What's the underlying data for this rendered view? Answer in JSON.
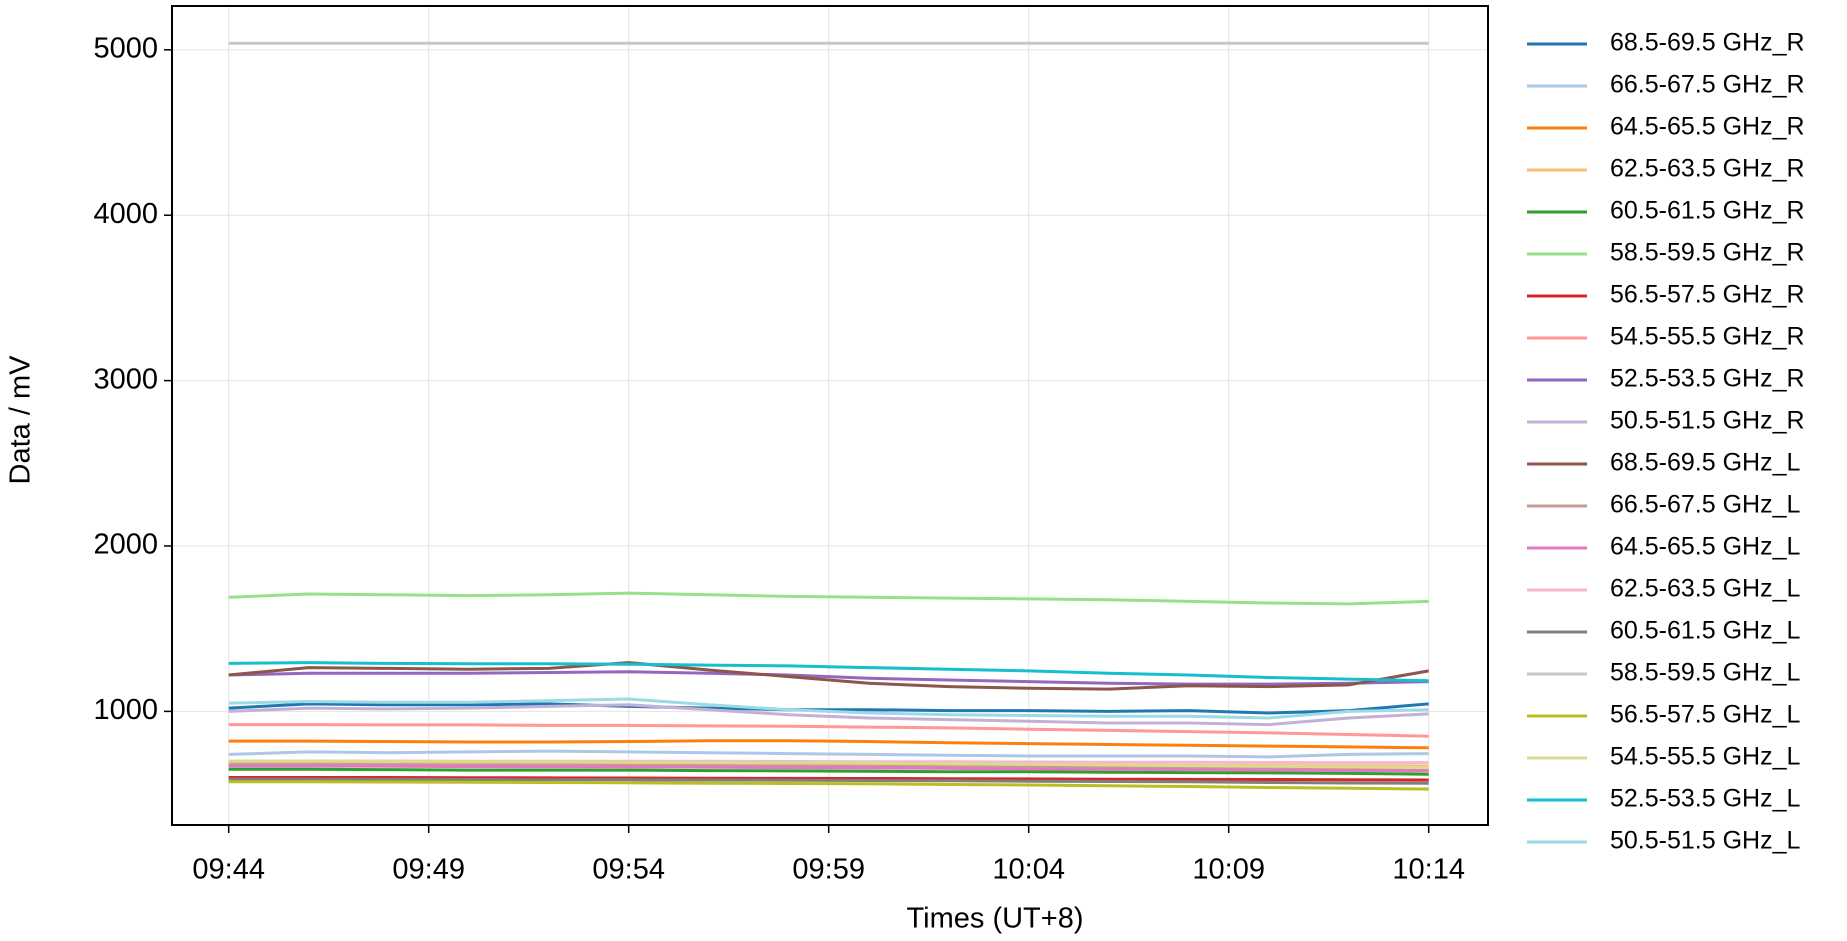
{
  "chart_data": {
    "type": "line",
    "xlabel": "Times (UT+8)",
    "ylabel": "Data / mV",
    "x": [
      "09:44",
      "09:46",
      "09:48",
      "09:50",
      "09:52",
      "09:54",
      "09:56",
      "09:58",
      "10:00",
      "10:02",
      "10:04",
      "10:06",
      "10:08",
      "10:10",
      "10:12",
      "10:14"
    ],
    "xlim": [
      "09:42:35",
      "10:15:29"
    ],
    "xticks": [
      "09:44",
      "09:49",
      "09:54",
      "09:59",
      "10:04",
      "10:09",
      "10:14"
    ],
    "ylim": [
      313,
      5265
    ],
    "yticks": [
      1000,
      2000,
      3000,
      4000,
      5000
    ],
    "grid": true,
    "legend": "outside-right",
    "series": [
      {
        "name": "68.5-69.5 GHz_R",
        "color": "#1f77b4",
        "values": [
          1020,
          1045,
          1040,
          1040,
          1045,
          1030,
          1020,
          1010,
          1010,
          1005,
          1005,
          1000,
          1005,
          990,
          1005,
          1045
        ]
      },
      {
        "name": "66.5-67.5 GHz_R",
        "color": "#aec7e8",
        "values": [
          740,
          755,
          750,
          755,
          760,
          755,
          750,
          745,
          740,
          735,
          730,
          730,
          730,
          725,
          740,
          745
        ]
      },
      {
        "name": "64.5-65.5 GHz_R",
        "color": "#ff7f0e",
        "values": [
          820,
          820,
          818,
          815,
          815,
          818,
          822,
          822,
          818,
          810,
          805,
          800,
          795,
          790,
          785,
          780
        ]
      },
      {
        "name": "62.5-63.5 GHz_R",
        "color": "#ffbb78",
        "values": [
          690,
          690,
          688,
          688,
          686,
          686,
          684,
          682,
          680,
          678,
          676,
          675,
          674,
          672,
          671,
          670
        ]
      },
      {
        "name": "60.5-61.5 GHz_R",
        "color": "#2ca02c",
        "values": [
          650,
          650,
          648,
          645,
          645,
          645,
          642,
          640,
          638,
          635,
          635,
          632,
          630,
          628,
          625,
          620
        ]
      },
      {
        "name": "58.5-59.5 GHz_R",
        "color": "#98df8a",
        "values": [
          1690,
          1710,
          1705,
          1700,
          1705,
          1715,
          1705,
          1695,
          1690,
          1685,
          1680,
          1675,
          1665,
          1655,
          1650,
          1665
        ]
      },
      {
        "name": "56.5-57.5 GHz_R",
        "color": "#d62728",
        "values": [
          600,
          600,
          600,
          599,
          598,
          597,
          596,
          595,
          594,
          593,
          592,
          590,
          589,
          588,
          586,
          585
        ]
      },
      {
        "name": "54.5-55.5 GHz_R",
        "color": "#ff9896",
        "values": [
          920,
          920,
          918,
          918,
          915,
          915,
          912,
          910,
          905,
          900,
          892,
          885,
          878,
          870,
          860,
          850
        ]
      },
      {
        "name": "52.5-53.5 GHz_R",
        "color": "#9467bd",
        "values": [
          1220,
          1230,
          1230,
          1230,
          1235,
          1240,
          1230,
          1220,
          1200,
          1190,
          1180,
          1170,
          1165,
          1165,
          1170,
          1180
        ]
      },
      {
        "name": "50.5-51.5 GHz_R",
        "color": "#c5b0d5",
        "values": [
          1000,
          1020,
          1015,
          1020,
          1030,
          1040,
          1010,
          980,
          960,
          950,
          940,
          930,
          930,
          920,
          960,
          985
        ]
      },
      {
        "name": "68.5-69.5 GHz_L",
        "color": "#8c564b",
        "values": [
          1220,
          1265,
          1260,
          1255,
          1260,
          1295,
          1250,
          1210,
          1170,
          1150,
          1140,
          1135,
          1155,
          1150,
          1160,
          1245
        ]
      },
      {
        "name": "66.5-67.5 GHz_L",
        "color": "#c49c94",
        "values": [
          680,
          680,
          678,
          676,
          675,
          674,
          672,
          670,
          668,
          665,
          662,
          660,
          658,
          655,
          652,
          650
        ]
      },
      {
        "name": "64.5-65.5 GHz_L",
        "color": "#e377c2",
        "values": [
          670,
          670,
          668,
          666,
          665,
          664,
          662,
          660,
          658,
          655,
          652,
          650,
          648,
          645,
          642,
          640
        ]
      },
      {
        "name": "62.5-63.5 GHz_L",
        "color": "#f7b6d2",
        "values": [
          700,
          700,
          700,
          699,
          699,
          698,
          698,
          697,
          696,
          695,
          694,
          693,
          692,
          691,
          690,
          690
        ]
      },
      {
        "name": "60.5-61.5 GHz_L",
        "color": "#7f7f7f",
        "values": [
          590,
          590,
          589,
          588,
          587,
          586,
          585,
          584,
          582,
          580,
          578,
          576,
          574,
          570,
          567,
          565
        ]
      },
      {
        "name": "58.5-59.5 GHz_L",
        "color": "#c7c7c7",
        "values": [
          5040,
          5040,
          5040,
          5040,
          5040,
          5040,
          5040,
          5040,
          5040,
          5040,
          5040,
          5040,
          5040,
          5040,
          5040,
          5040
        ]
      },
      {
        "name": "56.5-57.5 GHz_L",
        "color": "#bcbd22",
        "values": [
          575,
          575,
          573,
          572,
          570,
          568,
          566,
          564,
          562,
          558,
          555,
          550,
          546,
          540,
          535,
          530
        ]
      },
      {
        "name": "54.5-55.5 GHz_L",
        "color": "#dbdb8d",
        "values": [
          700,
          700,
          698,
          697,
          695,
          693,
          691,
          689,
          687,
          684,
          680,
          676,
          672,
          668,
          664,
          660
        ]
      },
      {
        "name": "52.5-53.5 GHz_L",
        "color": "#17becf",
        "values": [
          1290,
          1295,
          1290,
          1288,
          1288,
          1285,
          1280,
          1275,
          1265,
          1255,
          1245,
          1230,
          1220,
          1205,
          1195,
          1185
        ]
      },
      {
        "name": "50.5-51.5 GHz_L",
        "color": "#9edae5",
        "values": [
          1050,
          1060,
          1055,
          1055,
          1065,
          1075,
          1040,
          1010,
          990,
          980,
          975,
          970,
          970,
          960,
          1000,
          1010
        ]
      }
    ]
  }
}
